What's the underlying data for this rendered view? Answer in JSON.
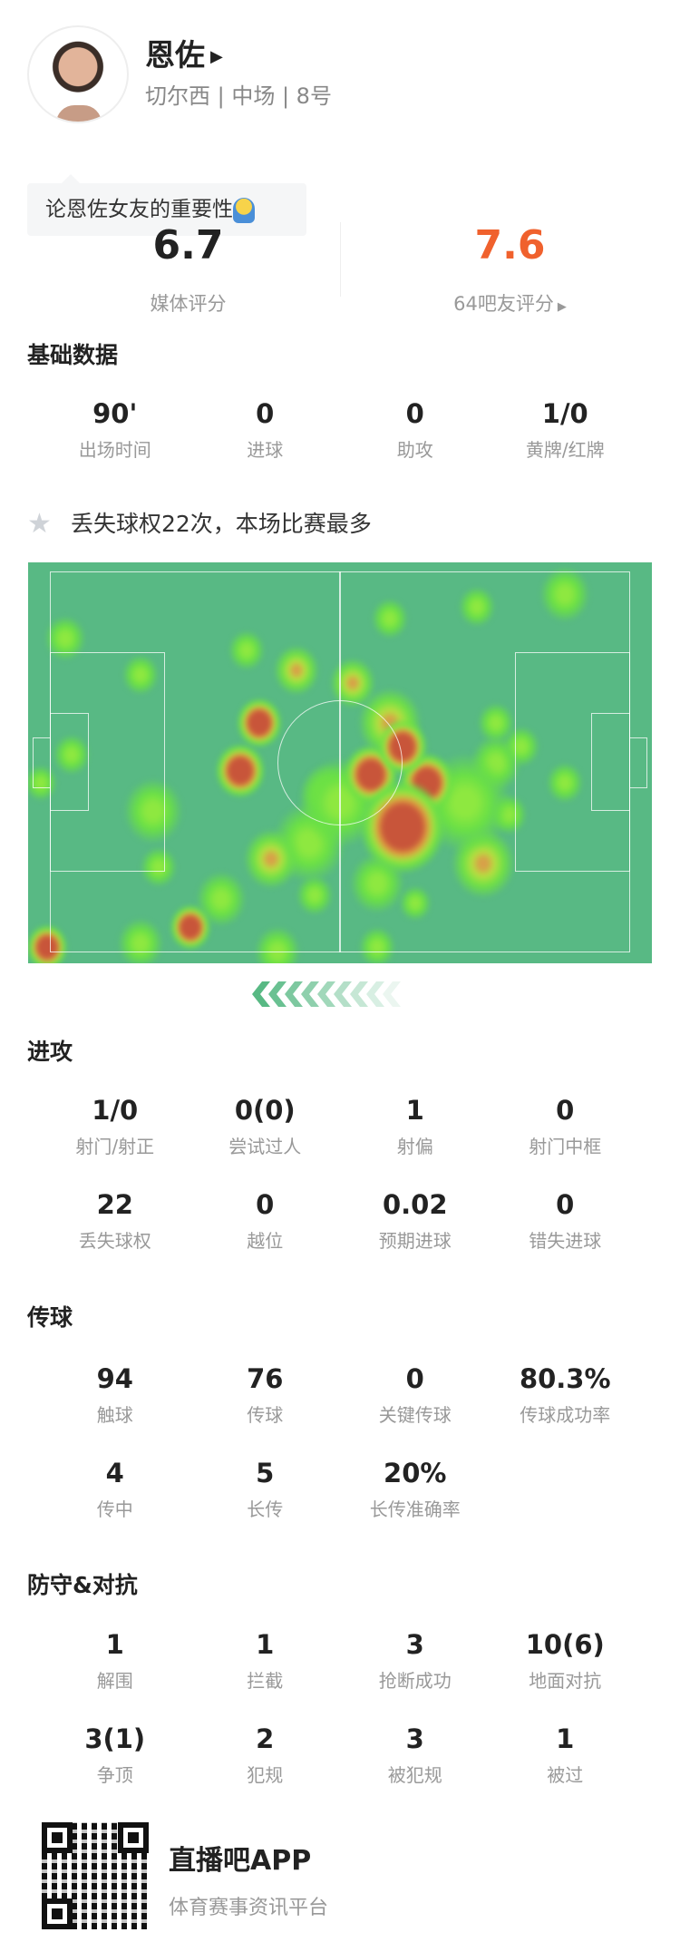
{
  "player": {
    "name": "恩佐",
    "team_position_number": "切尔西 | 中场 | 8号",
    "arrow_icon": "triangle-right"
  },
  "comment_bubble": {
    "text": "论恩佐女友的重要性",
    "emoji": "praying-emoji"
  },
  "ratings": {
    "media": {
      "value": "6.7",
      "label": "媒体评分"
    },
    "fans": {
      "value": "7.6",
      "label": "64吧友评分",
      "color": "#f0612d"
    }
  },
  "basic": {
    "title": "基础数据",
    "stats": [
      {
        "value": "90'",
        "label": "出场时间"
      },
      {
        "value": "0",
        "label": "进球"
      },
      {
        "value": "0",
        "label": "助攻"
      },
      {
        "value": "1/0",
        "label": "黄牌/红牌"
      }
    ]
  },
  "highlight": {
    "icon": "star-icon",
    "text": "丢失球权22次，本场比赛最多"
  },
  "heatmap": {
    "attack_direction": "left",
    "pitch_color": "#58b984"
  },
  "attack": {
    "title": "进攻",
    "stats": [
      {
        "value": "1/0",
        "label": "射门/射正"
      },
      {
        "value": "0(0)",
        "label": "尝试过人"
      },
      {
        "value": "1",
        "label": "射偏"
      },
      {
        "value": "0",
        "label": "射门中框"
      },
      {
        "value": "22",
        "label": "丢失球权"
      },
      {
        "value": "0",
        "label": "越位"
      },
      {
        "value": "0.02",
        "label": "预期进球"
      },
      {
        "value": "0",
        "label": "错失进球"
      }
    ]
  },
  "passing": {
    "title": "传球",
    "stats": [
      {
        "value": "94",
        "label": "触球"
      },
      {
        "value": "76",
        "label": "传球"
      },
      {
        "value": "0",
        "label": "关键传球"
      },
      {
        "value": "80.3%",
        "label": "传球成功率"
      },
      {
        "value": "4",
        "label": "传中"
      },
      {
        "value": "5",
        "label": "长传"
      },
      {
        "value": "20%",
        "label": "长传准确率"
      }
    ]
  },
  "defense": {
    "title": "防守&对抗",
    "stats": [
      {
        "value": "1",
        "label": "解围"
      },
      {
        "value": "1",
        "label": "拦截"
      },
      {
        "value": "3",
        "label": "抢断成功"
      },
      {
        "value": "10(6)",
        "label": "地面对抗"
      },
      {
        "value": "3(1)",
        "label": "争顶"
      },
      {
        "value": "2",
        "label": "犯规"
      },
      {
        "value": "3",
        "label": "被犯规"
      },
      {
        "value": "1",
        "label": "被过"
      }
    ]
  },
  "footer": {
    "app_name": "直播吧APP",
    "tagline": "体育赛事资讯平台"
  }
}
